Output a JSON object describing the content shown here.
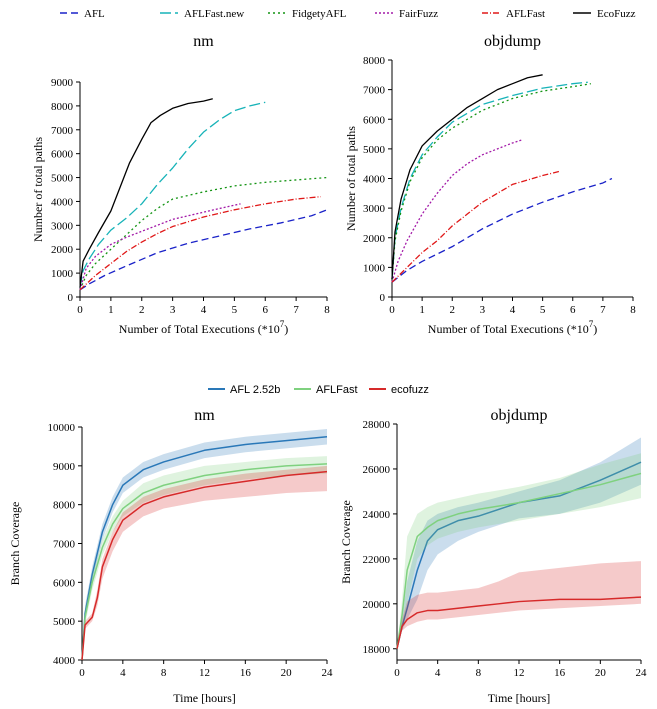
{
  "legend_top": [
    {
      "name": "AFL",
      "color": "#1a22c8",
      "dash": "7,4"
    },
    {
      "name": "AFLFast.new",
      "color": "#17b3b8",
      "dash": "11,4"
    },
    {
      "name": "FidgetyAFL",
      "color": "#139413",
      "dash": "2,3"
    },
    {
      "name": "FairFuzz",
      "color": "#a31aa8",
      "dash": "2,2"
    },
    {
      "name": "AFLFast",
      "color": "#e01818",
      "dash": "6,2,1,2"
    },
    {
      "name": "EcoFuzz",
      "color": "#000000",
      "dash": ""
    }
  ],
  "legend_bottom": [
    {
      "name": "AFL 2.52b",
      "color": "#2a78b8"
    },
    {
      "name": "AFLFast",
      "color": "#7fd17f"
    },
    {
      "name": "ecofuzz",
      "color": "#d62a2a"
    }
  ],
  "chart_data": [
    {
      "type": "line",
      "title": "nm",
      "xlabel": "Number of Total Executions (*10",
      "xlabel_sup": "7",
      "xlabel_close": ")",
      "ylabel": "Number of total paths",
      "xlim": [
        0,
        8
      ],
      "ylim": [
        0,
        9000
      ],
      "xticks": [
        0,
        1,
        2,
        3,
        4,
        5,
        6,
        7,
        8
      ],
      "yticks": [
        0,
        1000,
        2000,
        3000,
        4000,
        5000,
        6000,
        7000,
        8000,
        9000
      ],
      "series": [
        {
          "name": "AFL",
          "x": [
            0,
            0.3,
            0.8,
            1.5,
            2.5,
            3.5,
            4.5,
            5.5,
            6.5,
            7.5,
            8
          ],
          "y": [
            300,
            550,
            900,
            1300,
            1850,
            2250,
            2550,
            2850,
            3100,
            3400,
            3650
          ]
        },
        {
          "name": "AFLFast.new",
          "x": [
            0,
            0.1,
            0.3,
            0.6,
            1.0,
            1.5,
            2.0,
            2.5,
            3.0,
            3.5,
            4.0,
            4.5,
            5.0,
            5.5,
            6.0
          ],
          "y": [
            400,
            1100,
            1600,
            2200,
            2800,
            3300,
            3900,
            4700,
            5400,
            6200,
            6900,
            7400,
            7800,
            8000,
            8150
          ]
        },
        {
          "name": "FidgetyAFL",
          "x": [
            0,
            0.2,
            0.5,
            1.0,
            1.5,
            2.0,
            2.5,
            3.0,
            4.0,
            5.0,
            6.0,
            7.0,
            8.0
          ],
          "y": [
            300,
            900,
            1400,
            2000,
            2600,
            3200,
            3700,
            4100,
            4400,
            4650,
            4800,
            4900,
            5000
          ]
        },
        {
          "name": "FairFuzz",
          "x": [
            0,
            0.2,
            0.5,
            1.0,
            1.5,
            2.0,
            2.5,
            3.0,
            3.5,
            4.0,
            4.5,
            5.2
          ],
          "y": [
            300,
            1200,
            1700,
            2200,
            2500,
            2750,
            3000,
            3250,
            3400,
            3550,
            3700,
            3900
          ]
        },
        {
          "name": "AFLFast",
          "x": [
            0,
            0.5,
            1.0,
            1.5,
            2.0,
            2.5,
            3.0,
            4.0,
            5.0,
            6.0,
            7.0,
            7.8
          ],
          "y": [
            300,
            900,
            1400,
            1900,
            2300,
            2650,
            2950,
            3350,
            3650,
            3900,
            4100,
            4200
          ]
        },
        {
          "name": "EcoFuzz",
          "x": [
            0,
            0.1,
            0.3,
            0.6,
            1.0,
            1.3,
            1.6,
            2.0,
            2.3,
            2.6,
            3.0,
            3.5,
            4.0,
            4.3
          ],
          "y": [
            400,
            1500,
            2000,
            2700,
            3600,
            4600,
            5600,
            6600,
            7300,
            7600,
            7900,
            8100,
            8200,
            8300
          ]
        }
      ]
    },
    {
      "type": "line",
      "title": "objdump",
      "xlabel": "Number of Total Executions (*10",
      "xlabel_sup": "7",
      "xlabel_close": ")",
      "ylabel": "Number of total paths",
      "xlim": [
        0,
        8
      ],
      "ylim": [
        0,
        8000
      ],
      "xticks": [
        0,
        1,
        2,
        3,
        4,
        5,
        6,
        7,
        8
      ],
      "yticks": [
        0,
        1000,
        2000,
        3000,
        4000,
        5000,
        6000,
        7000,
        8000
      ],
      "series": [
        {
          "name": "AFL",
          "x": [
            0,
            0.5,
            1.0,
            2.0,
            3.0,
            4.0,
            5.0,
            6.0,
            7.0,
            7.3
          ],
          "y": [
            500,
            900,
            1200,
            1700,
            2300,
            2800,
            3200,
            3550,
            3850,
            4000
          ]
        },
        {
          "name": "AFLFast.new",
          "x": [
            0,
            0.1,
            0.3,
            0.6,
            1.0,
            1.5,
            2.0,
            2.5,
            3.0,
            4.0,
            5.0,
            6.0,
            6.5
          ],
          "y": [
            600,
            2000,
            3000,
            4000,
            4800,
            5400,
            5900,
            6200,
            6500,
            6800,
            7050,
            7200,
            7250
          ]
        },
        {
          "name": "FidgetyAFL",
          "x": [
            0,
            0.1,
            0.3,
            0.6,
            1.0,
            1.5,
            2.0,
            2.5,
            3.0,
            4.0,
            5.0,
            6.0,
            6.6
          ],
          "y": [
            600,
            1900,
            2900,
            3900,
            4700,
            5300,
            5700,
            6000,
            6300,
            6700,
            6950,
            7100,
            7200
          ]
        },
        {
          "name": "FairFuzz",
          "x": [
            0,
            0.2,
            0.5,
            1.0,
            1.5,
            2.0,
            2.5,
            3.0,
            3.5,
            4.0,
            4.3
          ],
          "y": [
            500,
            1200,
            1900,
            2800,
            3500,
            4100,
            4500,
            4800,
            5000,
            5200,
            5300
          ]
        },
        {
          "name": "AFLFast",
          "x": [
            0,
            0.5,
            1.0,
            1.5,
            2.0,
            2.5,
            3.0,
            3.5,
            4.0,
            5.0,
            5.6
          ],
          "y": [
            500,
            1000,
            1500,
            1900,
            2400,
            2800,
            3200,
            3500,
            3800,
            4100,
            4250
          ]
        },
        {
          "name": "EcoFuzz",
          "x": [
            0,
            0.1,
            0.3,
            0.6,
            1.0,
            1.5,
            2.0,
            2.5,
            3.0,
            3.5,
            4.0,
            4.5,
            5.0
          ],
          "y": [
            600,
            2200,
            3300,
            4300,
            5100,
            5600,
            6000,
            6400,
            6700,
            7000,
            7200,
            7400,
            7500
          ]
        }
      ]
    },
    {
      "type": "line",
      "title": "nm",
      "xlabel": "Time [hours]",
      "ylabel": "Branch Coverage",
      "xlim": [
        0,
        24
      ],
      "ylim": [
        4000,
        10000
      ],
      "xticks": [
        0,
        4,
        8,
        12,
        16,
        20,
        24
      ],
      "yticks": [
        4000,
        5000,
        6000,
        7000,
        8000,
        9000,
        10000
      ],
      "band": true,
      "series": [
        {
          "name": "AFL 2.52b",
          "x": [
            0,
            0.3,
            1,
            2,
            3,
            4,
            6,
            8,
            12,
            16,
            20,
            24
          ],
          "y": [
            4000,
            5200,
            6200,
            7300,
            8000,
            8500,
            8900,
            9100,
            9400,
            9550,
            9650,
            9750
          ],
          "lo": [
            4000,
            5000,
            6000,
            7100,
            7800,
            8300,
            8700,
            8900,
            9200,
            9350,
            9450,
            9550
          ],
          "hi": [
            4000,
            5400,
            6400,
            7500,
            8200,
            8700,
            9100,
            9300,
            9600,
            9750,
            9850,
            9950
          ]
        },
        {
          "name": "AFLFast",
          "x": [
            0,
            0.3,
            1,
            2,
            3,
            4,
            6,
            8,
            12,
            16,
            20,
            24
          ],
          "y": [
            4000,
            5100,
            6000,
            6900,
            7500,
            7900,
            8300,
            8500,
            8750,
            8900,
            9000,
            9050
          ],
          "lo": [
            4000,
            4900,
            5800,
            6700,
            7300,
            7700,
            8050,
            8250,
            8500,
            8650,
            8750,
            8800
          ],
          "hi": [
            4000,
            5300,
            6200,
            7100,
            7700,
            8100,
            8550,
            8750,
            9000,
            9100,
            9200,
            9250
          ]
        },
        {
          "name": "ecofuzz",
          "x": [
            0,
            0.3,
            1,
            1.5,
            2,
            3,
            4,
            6,
            8,
            12,
            16,
            20,
            24
          ],
          "y": [
            4000,
            4900,
            5100,
            5600,
            6400,
            7100,
            7600,
            8000,
            8200,
            8450,
            8600,
            8750,
            8850
          ],
          "lo": [
            4000,
            4800,
            5000,
            5400,
            6100,
            6800,
            7300,
            7700,
            7900,
            8100,
            8200,
            8300,
            8350
          ],
          "hi": [
            4000,
            5000,
            5200,
            5800,
            6600,
            7300,
            7800,
            8200,
            8400,
            8650,
            8800,
            8900,
            9000
          ]
        }
      ]
    },
    {
      "type": "line",
      "title": "objdump",
      "xlabel": "Time [hours]",
      "ylabel": "Branch Coverage",
      "xlim": [
        0,
        24
      ],
      "ylim": [
        17500,
        28000
      ],
      "xticks": [
        0,
        4,
        8,
        12,
        16,
        20,
        24
      ],
      "yticks": [
        18000,
        20000,
        22000,
        24000,
        26000,
        28000
      ],
      "band": true,
      "series": [
        {
          "name": "AFL 2.52b",
          "x": [
            0,
            0.5,
            1,
            2,
            3,
            4,
            6,
            8,
            12,
            16,
            20,
            24
          ],
          "y": [
            18000,
            19000,
            19800,
            21500,
            22800,
            23300,
            23700,
            23900,
            24500,
            24800,
            25500,
            26300
          ],
          "lo": [
            18000,
            18800,
            19300,
            20200,
            21500,
            22200,
            22800,
            23200,
            23800,
            24000,
            24500,
            25300
          ],
          "hi": [
            18000,
            19400,
            21000,
            22800,
            23700,
            24000,
            24300,
            24500,
            25000,
            25500,
            26300,
            27400
          ]
        },
        {
          "name": "AFLFast",
          "x": [
            0,
            0.5,
            1,
            2,
            3,
            4,
            6,
            8,
            12,
            16,
            20,
            24
          ],
          "y": [
            18000,
            19500,
            21500,
            23000,
            23400,
            23700,
            24000,
            24200,
            24500,
            24900,
            25300,
            25800
          ],
          "lo": [
            18000,
            19000,
            20000,
            22000,
            22600,
            22900,
            23200,
            23400,
            23700,
            24000,
            24300,
            24700
          ],
          "hi": [
            18000,
            20200,
            23000,
            24000,
            24300,
            24500,
            24700,
            24900,
            25200,
            25600,
            26200,
            26700
          ]
        },
        {
          "name": "ecofuzz",
          "x": [
            0,
            0.5,
            1,
            2,
            3,
            4,
            6,
            8,
            10,
            12,
            16,
            20,
            24
          ],
          "y": [
            18000,
            19000,
            19300,
            19600,
            19700,
            19700,
            19800,
            19900,
            20000,
            20100,
            20200,
            20200,
            20300
          ],
          "lo": [
            18000,
            18800,
            19000,
            19200,
            19300,
            19300,
            19400,
            19500,
            19600,
            19700,
            19800,
            19900,
            20000
          ],
          "hi": [
            18000,
            19300,
            20100,
            20400,
            20500,
            20500,
            20600,
            20700,
            21000,
            21400,
            21600,
            21800,
            21900
          ]
        }
      ]
    }
  ]
}
